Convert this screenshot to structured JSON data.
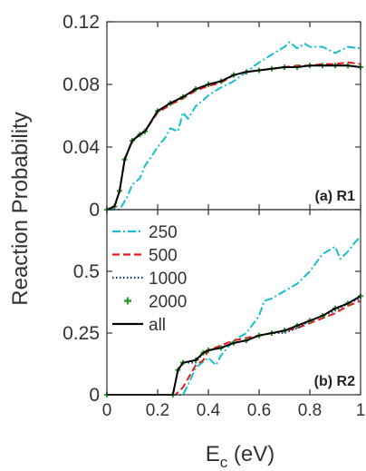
{
  "chart_data": [
    {
      "type": "line",
      "panel_label": "(a) R1",
      "ylabel": "Reaction Probability",
      "xlim": [
        0,
        1
      ],
      "ylim": [
        0,
        0.12
      ],
      "yticks": [
        0,
        0.04,
        0.08,
        0.12
      ],
      "ytick_labels": [
        "0",
        "0.04",
        "0.08",
        "0.12"
      ],
      "series": [
        {
          "name": "250",
          "color": "#17becf",
          "dash": "dashdot",
          "x": [
            0,
            0.05,
            0.08,
            0.1,
            0.13,
            0.15,
            0.18,
            0.2,
            0.23,
            0.25,
            0.28,
            0.3,
            0.32,
            0.35,
            0.38,
            0.4,
            0.45,
            0.5,
            0.55,
            0.6,
            0.65,
            0.7,
            0.72,
            0.75,
            0.78,
            0.8,
            0.85,
            0.9,
            0.95,
            1.0
          ],
          "y": [
            0,
            0.0,
            0.008,
            0.016,
            0.02,
            0.028,
            0.035,
            0.04,
            0.046,
            0.052,
            0.05,
            0.062,
            0.058,
            0.066,
            0.07,
            0.073,
            0.078,
            0.082,
            0.088,
            0.094,
            0.099,
            0.104,
            0.107,
            0.103,
            0.106,
            0.104,
            0.104,
            0.1,
            0.104,
            0.103
          ]
        },
        {
          "name": "500",
          "color": "#e41a1c",
          "dash": "dash",
          "x": [
            0,
            0.03,
            0.05,
            0.07,
            0.1,
            0.13,
            0.15,
            0.2,
            0.25,
            0.3,
            0.35,
            0.4,
            0.45,
            0.5,
            0.55,
            0.6,
            0.65,
            0.7,
            0.75,
            0.8,
            0.85,
            0.9,
            0.95,
            1.0
          ],
          "y": [
            0,
            0.002,
            0.012,
            0.032,
            0.044,
            0.048,
            0.05,
            0.062,
            0.067,
            0.071,
            0.076,
            0.079,
            0.081,
            0.086,
            0.088,
            0.089,
            0.09,
            0.091,
            0.092,
            0.092,
            0.093,
            0.093,
            0.094,
            0.093
          ]
        },
        {
          "name": "1000",
          "color": "#1f2f8f",
          "dash": "dot",
          "x": [
            0,
            0.03,
            0.05,
            0.07,
            0.1,
            0.13,
            0.15,
            0.2,
            0.25,
            0.3,
            0.35,
            0.4,
            0.45,
            0.5,
            0.55,
            0.6,
            0.65,
            0.7,
            0.75,
            0.8,
            0.85,
            0.9,
            0.95,
            1.0
          ],
          "y": [
            0,
            0.002,
            0.012,
            0.032,
            0.044,
            0.048,
            0.05,
            0.063,
            0.068,
            0.072,
            0.077,
            0.08,
            0.082,
            0.086,
            0.088,
            0.089,
            0.09,
            0.091,
            0.091,
            0.092,
            0.092,
            0.092,
            0.092,
            0.091
          ]
        },
        {
          "name": "2000",
          "color": "#2ca02c",
          "dash": "marker",
          "x": [
            0,
            0.03,
            0.05,
            0.07,
            0.1,
            0.13,
            0.15,
            0.2,
            0.25,
            0.3,
            0.35,
            0.4,
            0.45,
            0.5,
            0.55,
            0.6,
            0.65,
            0.7,
            0.75,
            0.8,
            0.85,
            0.9,
            0.95,
            1.0
          ],
          "y": [
            0,
            0.002,
            0.012,
            0.032,
            0.044,
            0.048,
            0.05,
            0.063,
            0.068,
            0.072,
            0.077,
            0.08,
            0.082,
            0.086,
            0.088,
            0.089,
            0.09,
            0.091,
            0.091,
            0.092,
            0.092,
            0.092,
            0.092,
            0.091
          ]
        },
        {
          "name": "all",
          "color": "#000000",
          "dash": "solid",
          "x": [
            0,
            0.03,
            0.05,
            0.07,
            0.1,
            0.13,
            0.15,
            0.2,
            0.25,
            0.3,
            0.35,
            0.4,
            0.45,
            0.5,
            0.55,
            0.6,
            0.65,
            0.7,
            0.75,
            0.8,
            0.85,
            0.9,
            0.95,
            1.0
          ],
          "y": [
            0,
            0.002,
            0.012,
            0.032,
            0.044,
            0.048,
            0.05,
            0.063,
            0.068,
            0.072,
            0.077,
            0.08,
            0.082,
            0.086,
            0.088,
            0.089,
            0.09,
            0.091,
            0.091,
            0.092,
            0.092,
            0.092,
            0.092,
            0.091
          ]
        }
      ]
    },
    {
      "type": "line",
      "panel_label": "(b) R2",
      "xlabel": "E_c (eV)",
      "xlabel_main": "E",
      "xlabel_sub": "c",
      "xlabel_unit": " (eV)",
      "xlim": [
        0,
        1
      ],
      "ylim": [
        0,
        0.75
      ],
      "xticks": [
        0,
        0.2,
        0.4,
        0.6,
        0.8,
        1
      ],
      "xtick_labels": [
        "0",
        "0.2",
        "0.4",
        "0.6",
        "0.8",
        "1"
      ],
      "yticks": [
        0,
        0.25,
        0.5
      ],
      "ytick_labels": [
        "0",
        "0.25",
        "0.5"
      ],
      "legend_placement": "top-left",
      "series": [
        {
          "name": "250",
          "color": "#17becf",
          "dash": "dashdot",
          "x": [
            0,
            0.3,
            0.32,
            0.35,
            0.4,
            0.43,
            0.45,
            0.5,
            0.55,
            0.6,
            0.62,
            0.65,
            0.7,
            0.75,
            0.8,
            0.85,
            0.9,
            0.92,
            0.95,
            0.98,
            1.0
          ],
          "y": [
            0,
            0,
            0.04,
            0.11,
            0.15,
            0.12,
            0.16,
            0.22,
            0.25,
            0.32,
            0.38,
            0.39,
            0.42,
            0.45,
            0.5,
            0.57,
            0.6,
            0.55,
            0.58,
            0.62,
            0.64
          ]
        },
        {
          "name": "500",
          "color": "#e41a1c",
          "dash": "dash",
          "x": [
            0,
            0.27,
            0.3,
            0.35,
            0.38,
            0.4,
            0.45,
            0.5,
            0.55,
            0.6,
            0.65,
            0.7,
            0.75,
            0.8,
            0.85,
            0.9,
            0.95,
            1.0
          ],
          "y": [
            0,
            0,
            0.03,
            0.12,
            0.14,
            0.18,
            0.2,
            0.22,
            0.23,
            0.24,
            0.25,
            0.26,
            0.27,
            0.29,
            0.31,
            0.33,
            0.36,
            0.38
          ]
        },
        {
          "name": "1000",
          "color": "#1f2f8f",
          "dash": "dot",
          "x": [
            0,
            0.26,
            0.28,
            0.3,
            0.35,
            0.38,
            0.4,
            0.45,
            0.5,
            0.55,
            0.6,
            0.65,
            0.7,
            0.75,
            0.8,
            0.85,
            0.9,
            0.95,
            1.0
          ],
          "y": [
            0,
            0,
            0.1,
            0.13,
            0.13,
            0.17,
            0.18,
            0.19,
            0.21,
            0.22,
            0.24,
            0.25,
            0.25,
            0.27,
            0.3,
            0.32,
            0.34,
            0.37,
            0.39
          ]
        },
        {
          "name": "2000",
          "color": "#2ca02c",
          "dash": "marker",
          "x": [
            0,
            0.26,
            0.28,
            0.3,
            0.35,
            0.38,
            0.4,
            0.45,
            0.5,
            0.55,
            0.6,
            0.65,
            0.7,
            0.75,
            0.8,
            0.85,
            0.9,
            0.95,
            1.0
          ],
          "y": [
            0,
            0,
            0.1,
            0.13,
            0.14,
            0.17,
            0.18,
            0.19,
            0.21,
            0.22,
            0.24,
            0.25,
            0.26,
            0.28,
            0.3,
            0.32,
            0.35,
            0.37,
            0.4
          ]
        },
        {
          "name": "all",
          "color": "#000000",
          "dash": "solid",
          "x": [
            0,
            0.26,
            0.28,
            0.3,
            0.35,
            0.38,
            0.4,
            0.45,
            0.5,
            0.55,
            0.6,
            0.65,
            0.7,
            0.75,
            0.8,
            0.85,
            0.9,
            0.95,
            1.0
          ],
          "y": [
            0,
            0,
            0.1,
            0.13,
            0.14,
            0.17,
            0.18,
            0.19,
            0.21,
            0.22,
            0.24,
            0.25,
            0.26,
            0.28,
            0.3,
            0.32,
            0.35,
            0.37,
            0.4
          ]
        }
      ]
    }
  ]
}
